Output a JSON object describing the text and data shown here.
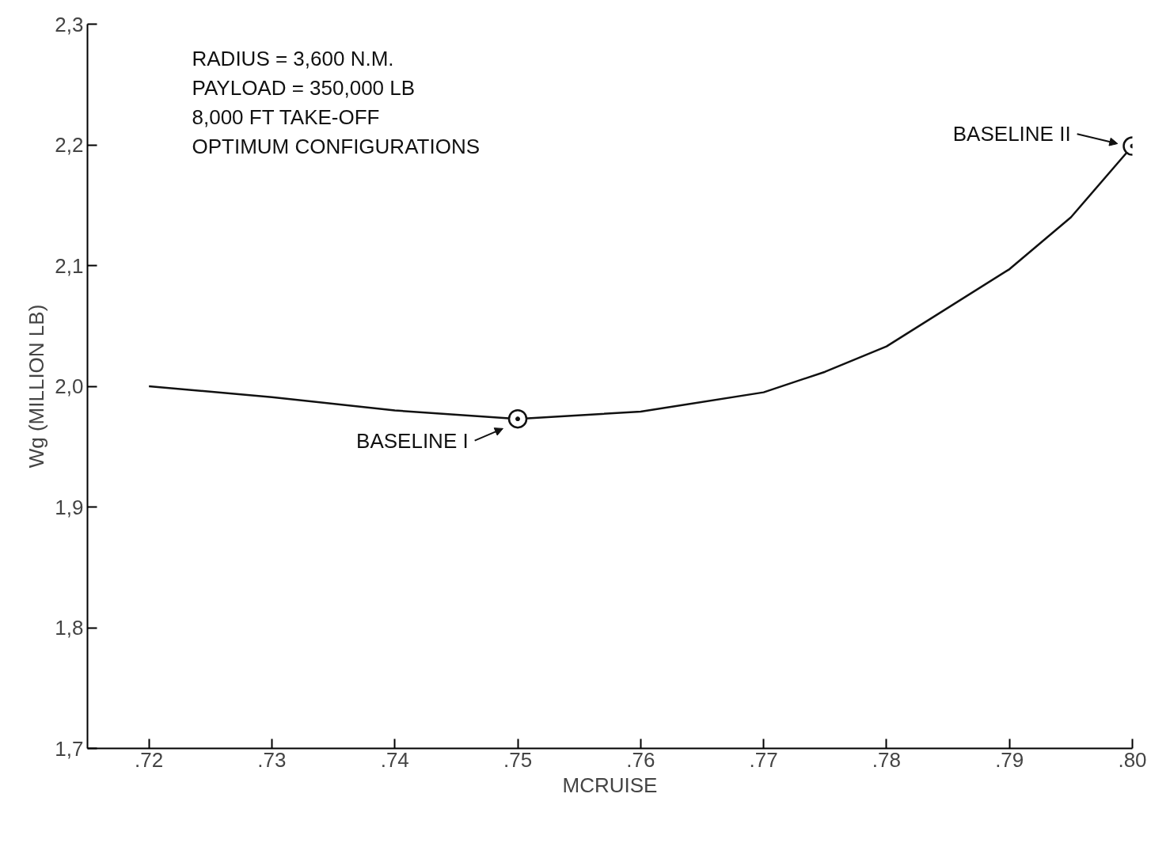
{
  "chart_data": {
    "type": "line",
    "xlabel": "MCRUISE",
    "ylabel": "Wg (MILLION LB)",
    "xlim": [
      0.715,
      0.8
    ],
    "ylim": [
      1.7,
      2.3
    ],
    "xticks": [
      {
        "value": 0.72,
        "label": ".72"
      },
      {
        "value": 0.73,
        "label": ".73"
      },
      {
        "value": 0.74,
        "label": ".74"
      },
      {
        "value": 0.75,
        "label": ".75"
      },
      {
        "value": 0.76,
        "label": ".76"
      },
      {
        "value": 0.77,
        "label": ".77"
      },
      {
        "value": 0.78,
        "label": ".78"
      },
      {
        "value": 0.79,
        "label": ".79"
      },
      {
        "value": 0.8,
        "label": ".80"
      }
    ],
    "yticks": [
      {
        "value": 1.7,
        "label": "1,7"
      },
      {
        "value": 1.8,
        "label": "1,8"
      },
      {
        "value": 1.9,
        "label": "1,9"
      },
      {
        "value": 2.0,
        "label": "2,0"
      },
      {
        "value": 2.1,
        "label": "2,1"
      },
      {
        "value": 2.2,
        "label": "2,2"
      },
      {
        "value": 2.3,
        "label": "2,3"
      }
    ],
    "grid": false,
    "series": [
      {
        "color": "#111111",
        "marker": "none",
        "x": [
          0.72,
          0.73,
          0.74,
          0.75,
          0.76,
          0.77,
          0.775,
          0.78,
          0.79,
          0.795,
          0.8
        ],
        "values": [
          2.0,
          1.991,
          1.98,
          1.973,
          1.979,
          1.995,
          2.012,
          2.033,
          2.097,
          2.14,
          2.199
        ]
      },
      {
        "type": "scatter",
        "color": "#111111",
        "marker": "circle",
        "x": [
          0.75,
          0.8
        ],
        "values": [
          1.973,
          2.199
        ]
      }
    ],
    "annotations": [
      "RADIUS = 3,600 N.M.",
      "PAYLOAD = 350,000 LB",
      "8,000 FT TAKE-OFF",
      "OPTIMUM CONFIGURATIONS",
      {
        "text": "BASELINE I",
        "x": 0.75,
        "y": 1.973
      },
      {
        "text": "BASELINE II",
        "x": 0.8,
        "y": 2.199
      }
    ]
  }
}
